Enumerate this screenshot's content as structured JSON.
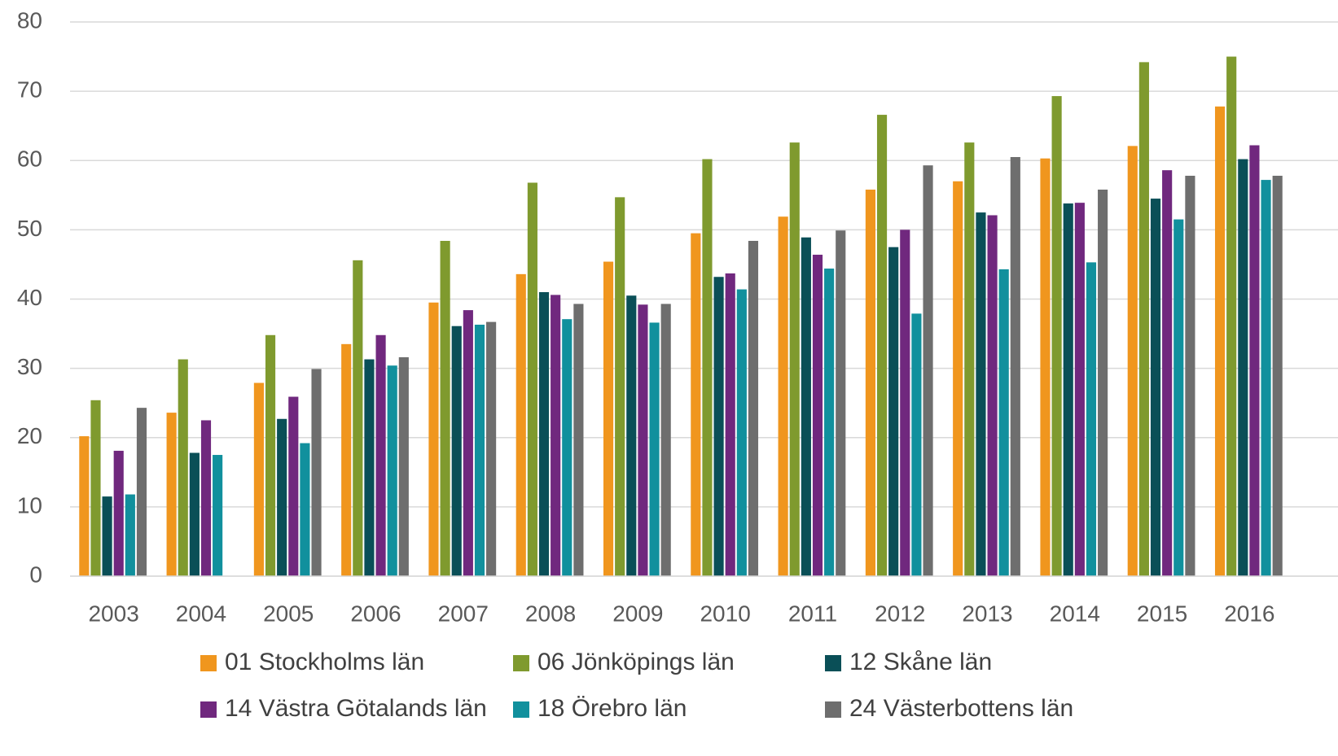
{
  "chart_data": {
    "type": "bar",
    "categories": [
      "2003",
      "2004",
      "2005",
      "2006",
      "2007",
      "2008",
      "2009",
      "2010",
      "2011",
      "2012",
      "2013",
      "2014",
      "2015",
      "2016"
    ],
    "series": [
      {
        "name": "01 Stockholms län",
        "color": "#f0961e",
        "values": [
          20.2,
          23.6,
          27.9,
          33.5,
          39.5,
          43.6,
          45.4,
          49.5,
          51.9,
          55.8,
          57.0,
          60.3,
          62.1,
          67.8
        ]
      },
      {
        "name": "06 Jönköpings län",
        "color": "#7f9a2e",
        "values": [
          25.4,
          31.3,
          34.8,
          45.6,
          48.4,
          56.8,
          54.7,
          60.2,
          62.6,
          66.6,
          62.6,
          69.3,
          74.2,
          75.0
        ]
      },
      {
        "name": "12 Skåne län",
        "color": "#0a4f57",
        "values": [
          11.5,
          17.8,
          22.7,
          31.3,
          36.1,
          41.0,
          40.5,
          43.2,
          48.9,
          47.5,
          52.5,
          53.8,
          54.5,
          60.2
        ]
      },
      {
        "name": "14 Västra Götalands län",
        "color": "#70287e",
        "values": [
          18.1,
          22.5,
          25.9,
          34.8,
          38.4,
          40.6,
          39.2,
          43.7,
          46.4,
          50.0,
          52.1,
          53.9,
          58.6,
          62.2
        ]
      },
      {
        "name": "18 Örebro län",
        "color": "#11909d",
        "values": [
          11.8,
          17.5,
          19.2,
          30.4,
          36.3,
          37.1,
          36.6,
          41.4,
          44.4,
          37.9,
          44.3,
          45.3,
          51.5,
          57.2
        ]
      },
      {
        "name": "24 Västerbottens län",
        "color": "#6e6e6e",
        "values": [
          24.3,
          null,
          29.9,
          31.6,
          36.7,
          39.3,
          39.3,
          48.4,
          49.9,
          59.3,
          60.5,
          55.8,
          57.8,
          57.8
        ]
      }
    ],
    "ylim": [
      0,
      80
    ],
    "yticks": [
      0,
      10,
      20,
      30,
      40,
      50,
      60,
      70,
      80
    ],
    "grid": true
  }
}
